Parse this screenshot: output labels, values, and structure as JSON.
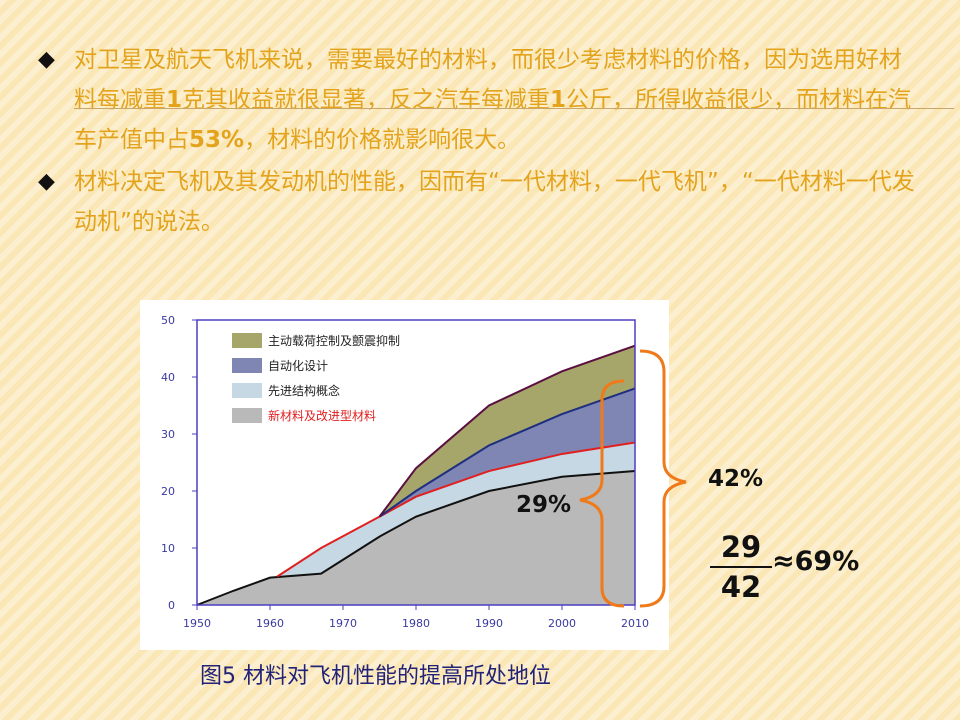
{
  "bullets": [
    {
      "icon": "diamond-bullet",
      "text_a": "对卫星及航天飞机来说，需要最好的材料，而很少考虑材料的价格，因为选用好材料每减重",
      "bold_a": "1",
      "text_b": "克其收益就很显著，反之汽车每减重",
      "bold_b": "1",
      "text_c": "公斤，所得收益很少，而材料在汽车产值中占",
      "bold_c": "53%",
      "text_d": "，材料的价格就影响很大。"
    },
    {
      "icon": "diamond-bullet",
      "text_a": "材料决定飞机及其发动机的性能，因而有“一代材料，一代飞机”，“一代材料一代发动机”的说法。"
    }
  ],
  "chart_data": {
    "type": "area",
    "x_ticks": [
      1950,
      1960,
      1970,
      1980,
      1990,
      2000,
      2010
    ],
    "y_ticks": [
      0,
      10,
      20,
      30,
      40,
      50
    ],
    "xlim": [
      1950,
      2010
    ],
    "ylim": [
      0,
      50
    ],
    "legend_position": "top-left",
    "series": [
      {
        "name": "新材料及改进型材料",
        "color": "#b9b9b9",
        "line": "#111111",
        "x": [
          1950,
          1955,
          1960,
          1967,
          1975,
          1980,
          1990,
          2000,
          2010
        ],
        "y": [
          0,
          2.5,
          4.8,
          5.5,
          12,
          15.5,
          20,
          22.5,
          23.5
        ]
      },
      {
        "name": "先进结构概念",
        "color": "#c5d8e3",
        "line": "#e02020",
        "x": [
          1961,
          1967,
          1975,
          1980,
          1990,
          2000,
          2010
        ],
        "y": [
          5,
          10,
          15.5,
          19,
          23.5,
          26.5,
          28.5
        ]
      },
      {
        "name": "自动化设计",
        "color": "#7f86b3",
        "line": "#1f2f7f",
        "x": [
          1975,
          1980,
          1990,
          2000,
          2010
        ],
        "y": [
          15.5,
          20,
          28,
          33.5,
          38
        ]
      },
      {
        "name": "主动载荷控制及颤震抑制",
        "color": "#a6a66a",
        "line": "#5a1040",
        "x": [
          1975,
          1980,
          1990,
          2000,
          2010
        ],
        "y": [
          15.5,
          24,
          35,
          41,
          45.5
        ]
      }
    ]
  },
  "annotations": {
    "total_pct": "42%",
    "material_pct": "29%",
    "frac_num": "29",
    "frac_den": "42",
    "approx_result": "≈69%",
    "bracket_color": "#f07a1a"
  },
  "caption": "图5  材料对飞机性能的提高所处地位"
}
